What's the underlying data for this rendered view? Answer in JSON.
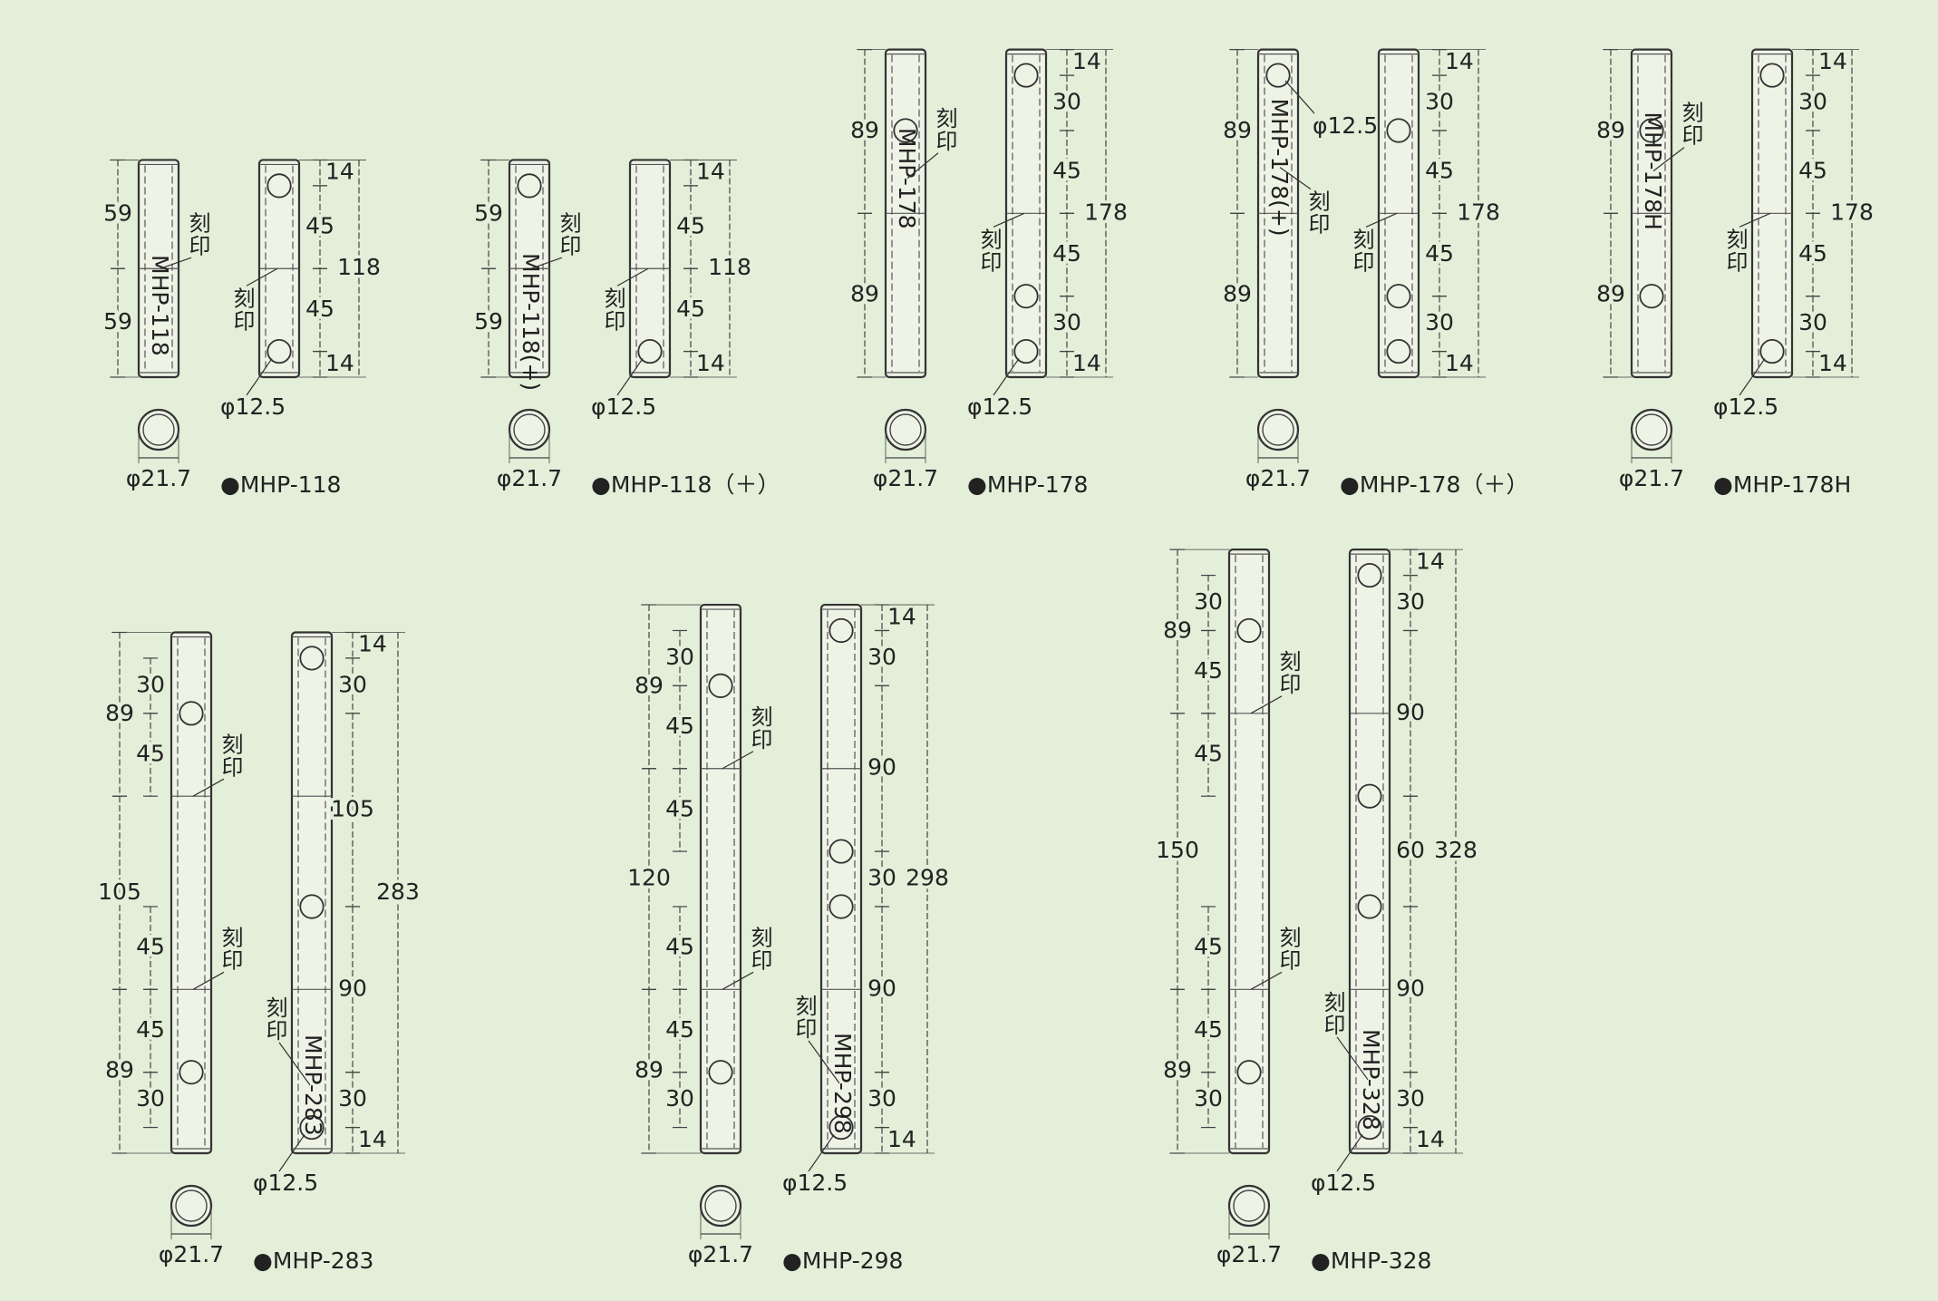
{
  "stamp": "刻印",
  "hole_label": "φ12.5",
  "outer_label": "φ21.7",
  "parts": [
    {
      "name": "●MHP-118",
      "engraving": "MHP-118",
      "left": {
        "dims": [
          59,
          59
        ]
      },
      "right": {
        "dims": [
          14,
          45,
          45,
          14
        ],
        "total": 118
      }
    },
    {
      "name": "●MHP-118（＋）",
      "engraving": "MHP-118(+)",
      "left": {
        "dims": [
          59,
          59
        ]
      },
      "right": {
        "dims": [
          14,
          45,
          45,
          14
        ],
        "total": 118
      }
    },
    {
      "name": "●MHP-178",
      "engraving": "MHP-178",
      "left": {
        "dims": [
          89,
          89
        ]
      },
      "right": {
        "dims": [
          14,
          30,
          45,
          45,
          30,
          14
        ],
        "total": 178
      }
    },
    {
      "name": "●MHP-178（＋）",
      "engraving": "MHP-178(+)",
      "left": {
        "dims": [
          89,
          89
        ]
      },
      "right": {
        "dims": [
          14,
          30,
          45,
          45,
          30,
          14
        ],
        "total": 178
      }
    },
    {
      "name": "●MHP-178H",
      "engraving": "MHP-178H",
      "left": {
        "dims": [
          89,
          89
        ]
      },
      "right": {
        "dims": [
          14,
          30,
          45,
          45,
          30,
          14
        ],
        "total": 178
      }
    },
    {
      "name": "●MHP-283",
      "engraving": "MHP-283",
      "left": {
        "dims": [
          89,
          105,
          89
        ],
        "inner": [
          [
            30,
            45
          ],
          [
            45,
            45,
            30
          ]
        ]
      },
      "right": {
        "dims": [
          14,
          30,
          105,
          90,
          30,
          14
        ],
        "total": 283
      }
    },
    {
      "name": "●MHP-298",
      "engraving": "MHP-298",
      "left": {
        "dims": [
          89,
          120,
          89
        ],
        "inner": [
          [
            30,
            45,
            45
          ],
          [
            45,
            45,
            30
          ]
        ]
      },
      "right": {
        "dims": [
          14,
          30,
          90,
          30,
          90,
          30,
          14
        ],
        "total": 298
      }
    },
    {
      "name": "●MHP-328",
      "engraving": "MHP-328",
      "left": {
        "dims": [
          89,
          150,
          89
        ],
        "inner": [
          [
            30,
            45,
            45
          ],
          [
            45,
            45,
            30
          ]
        ]
      },
      "right": {
        "dims": [
          14,
          30,
          90,
          60,
          90,
          30,
          14
        ],
        "total": 328
      }
    }
  ]
}
